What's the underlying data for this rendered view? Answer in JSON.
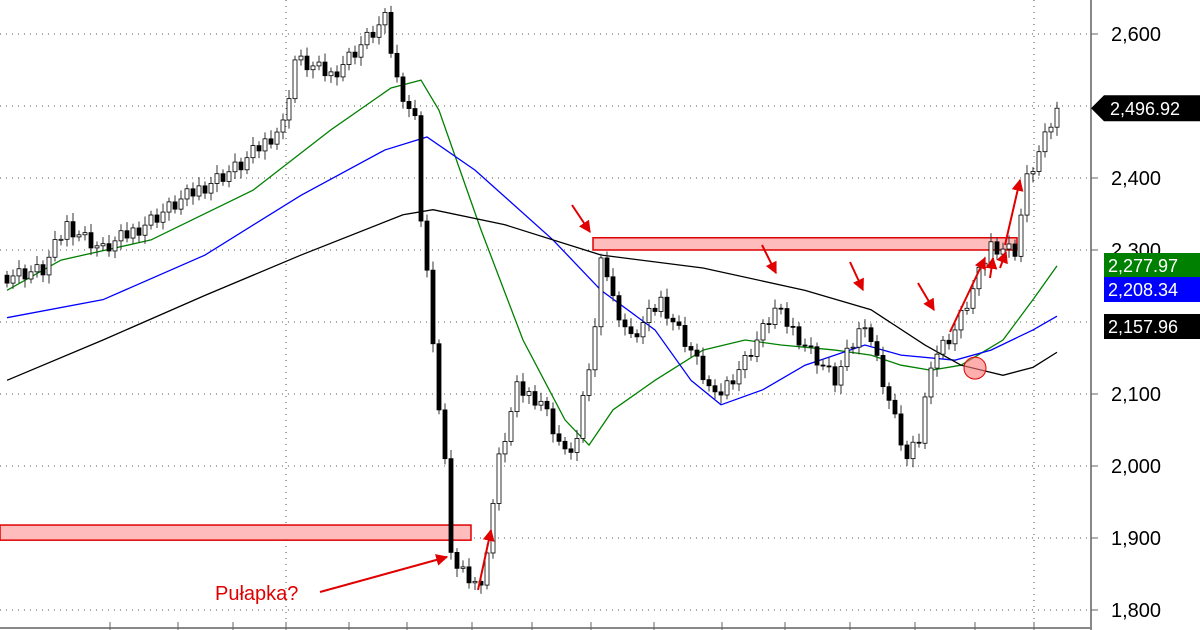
{
  "chart_data": {
    "type": "candlestick",
    "title": "",
    "xlabel": "",
    "ylabel": "",
    "ylim": [
      1800,
      2640
    ],
    "grid": true,
    "y_ticks": [
      "2,600",
      "2,400",
      "2,300",
      "2,100",
      "2,000",
      "1,900",
      "1,800"
    ],
    "y_tick_values": [
      2600,
      2400,
      2300,
      2100,
      2000,
      1900,
      1800
    ],
    "bar_count": 176,
    "close_keypoints": [
      [
        0,
        2265
      ],
      [
        6,
        2272
      ],
      [
        10,
        2335
      ],
      [
        16,
        2300
      ],
      [
        24,
        2342
      ],
      [
        33,
        2390
      ],
      [
        39,
        2418
      ],
      [
        46,
        2474
      ],
      [
        48,
        2564
      ],
      [
        54,
        2543
      ],
      [
        59,
        2585
      ],
      [
        63,
        2619
      ],
      [
        65,
        2536
      ],
      [
        68,
        2480
      ],
      [
        69,
        2349
      ],
      [
        70,
        2272
      ],
      [
        71,
        2161
      ],
      [
        73,
        2008
      ],
      [
        74,
        1869
      ],
      [
        78,
        1842
      ],
      [
        79,
        1828
      ],
      [
        82,
        2008
      ],
      [
        85,
        2106
      ],
      [
        89,
        2092
      ],
      [
        93,
        2015
      ],
      [
        95,
        2036
      ],
      [
        98,
        2189
      ],
      [
        99,
        2300
      ],
      [
        101,
        2230
      ],
      [
        104,
        2175
      ],
      [
        109,
        2230
      ],
      [
        114,
        2161
      ],
      [
        118,
        2092
      ],
      [
        123,
        2147
      ],
      [
        128,
        2217
      ],
      [
        131,
        2189
      ],
      [
        138,
        2119
      ],
      [
        143,
        2203
      ],
      [
        146,
        2119
      ],
      [
        150,
        2008
      ],
      [
        152,
        2036
      ],
      [
        154,
        2147
      ],
      [
        158,
        2189
      ],
      [
        161,
        2244
      ],
      [
        164,
        2307
      ],
      [
        168,
        2300
      ],
      [
        170,
        2397
      ],
      [
        173,
        2453
      ],
      [
        175,
        2496.92
      ]
    ],
    "series": [
      {
        "color": "#008000",
        "last_value": "2,277.97",
        "keypoints": [
          [
            0,
            2244
          ],
          [
            9,
            2286
          ],
          [
            24,
            2314
          ],
          [
            41,
            2383
          ],
          [
            54,
            2467
          ],
          [
            64,
            2525
          ],
          [
            69,
            2536
          ],
          [
            72,
            2494
          ],
          [
            79,
            2328
          ],
          [
            86,
            2175
          ],
          [
            93,
            2064
          ],
          [
            97,
            2029
          ],
          [
            101,
            2078
          ],
          [
            108,
            2119
          ],
          [
            116,
            2161
          ],
          [
            123,
            2175
          ],
          [
            129,
            2168
          ],
          [
            138,
            2161
          ],
          [
            144,
            2154
          ],
          [
            149,
            2140
          ],
          [
            154,
            2133
          ],
          [
            159,
            2140
          ],
          [
            166,
            2175
          ],
          [
            171,
            2231
          ],
          [
            175,
            2278
          ]
        ]
      },
      {
        "color": "#0000ff",
        "last_value": "2,208.34",
        "keypoints": [
          [
            0,
            2206
          ],
          [
            16,
            2231
          ],
          [
            33,
            2293
          ],
          [
            49,
            2376
          ],
          [
            63,
            2439
          ],
          [
            70,
            2457
          ],
          [
            78,
            2411
          ],
          [
            91,
            2314
          ],
          [
            99,
            2244
          ],
          [
            108,
            2189
          ],
          [
            114,
            2119
          ],
          [
            119,
            2085
          ],
          [
            126,
            2106
          ],
          [
            133,
            2140
          ],
          [
            143,
            2168
          ],
          [
            149,
            2154
          ],
          [
            158,
            2147
          ],
          [
            164,
            2161
          ],
          [
            171,
            2189
          ],
          [
            175,
            2208
          ]
        ]
      },
      {
        "color": "#000000",
        "last_value": "2,157.96",
        "keypoints": [
          [
            0,
            2119
          ],
          [
            16,
            2175
          ],
          [
            33,
            2237
          ],
          [
            49,
            2293
          ],
          [
            66,
            2349
          ],
          [
            71,
            2356
          ],
          [
            83,
            2335
          ],
          [
            99,
            2293
          ],
          [
            116,
            2275
          ],
          [
            133,
            2244
          ],
          [
            144,
            2217
          ],
          [
            153,
            2168
          ],
          [
            159,
            2140
          ],
          [
            166,
            2126
          ],
          [
            171,
            2137
          ],
          [
            175,
            2158
          ]
        ]
      }
    ],
    "last_price": "2,496.92",
    "annotations": {
      "text": "Pułapka?",
      "color": "#e00000",
      "zones": [
        {
          "from_bar": 98,
          "to_bar": 168,
          "low": 2300,
          "high": 2317
        },
        {
          "from_bar": -1,
          "to_bar": 77,
          "low": 1897,
          "high": 1918
        }
      ],
      "circle": {
        "bar": 161,
        "price": 2136
      }
    }
  }
}
